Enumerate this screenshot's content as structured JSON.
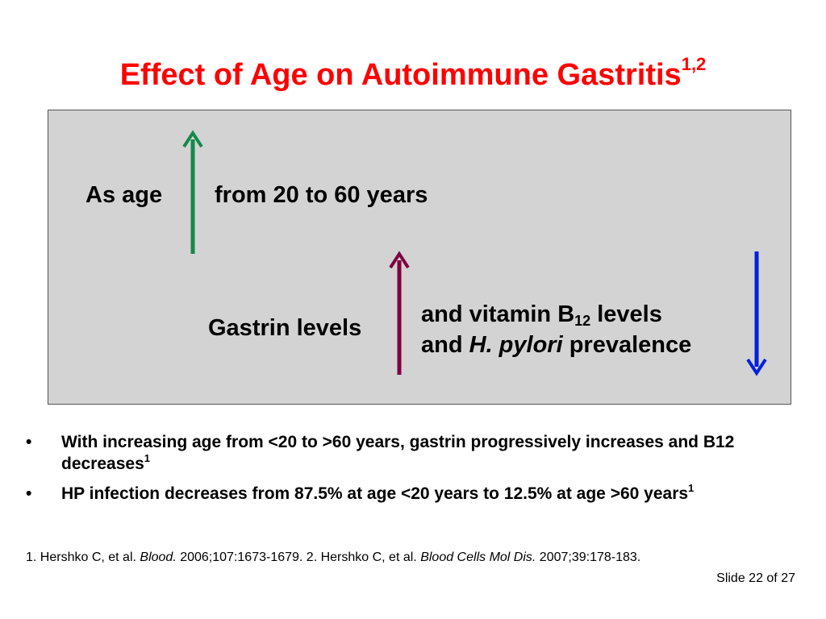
{
  "title": {
    "text": "Effect of Age on Autoimmune Gastritis",
    "sup": "1,2"
  },
  "colors": {
    "title": "#ff0000",
    "arrow_age": "#138a4a",
    "arrow_gastrin": "#7f0040",
    "arrow_b12": "#0020dd",
    "box_bg": "#d3d3d3"
  },
  "diagram": {
    "as_age": "As age",
    "from_years": "from 20 to 60 years",
    "gastrin": "Gastrin levels",
    "b12_prefix": "and vitamin B",
    "b12_sub": "12",
    "b12_suffix": " levels",
    "hp_prefix": "and ",
    "hp_italic": "H. pylori",
    "hp_suffix": " prevalence",
    "arrow_age_icon": "arrow-up-icon",
    "arrow_gastrin_icon": "arrow-up-icon",
    "arrow_b12_icon": "arrow-down-icon"
  },
  "bullets": [
    {
      "marker": "•",
      "text": "With increasing age from <20 to >60 years, gastrin progressively increases and B12 decreases",
      "ref": "1"
    },
    {
      "marker": "•",
      "text": "HP infection decreases from 87.5% at age <20 years to 12.5% at age >60 years",
      "ref": "1"
    }
  ],
  "references": {
    "r1_prefix": "1. Hershko C, et al. ",
    "r1_journal": "Blood.",
    "r1_suffix": " 2006;107:1673-1679. 2. Hershko C, et al. ",
    "r2_journal": "Blood Cells Mol Dis.",
    "r2_suffix": " 2007;39:178-183."
  },
  "slide_number": "Slide 22 of 27"
}
